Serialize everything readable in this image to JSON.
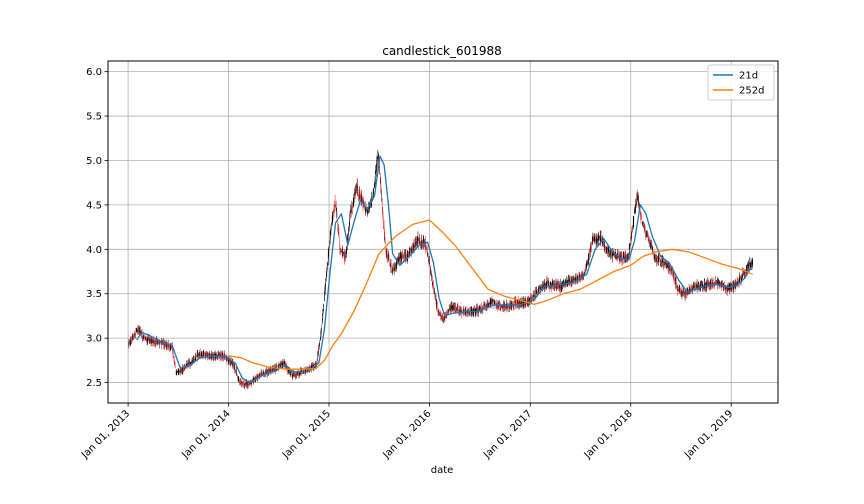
{
  "chart_data": {
    "type": "candlestick",
    "title": "candlestick_601988",
    "xlabel": "date",
    "ylabel": "",
    "x_ticks": [
      "Jan 01, 2013",
      "Jan 01, 2014",
      "Jan 01, 2015",
      "Jan 01, 2016",
      "Jan 01, 2017",
      "Jan 01, 2018",
      "Jan 01, 2019"
    ],
    "y_ticks": [
      "2.5",
      "3.0",
      "3.5",
      "4.0",
      "4.5",
      "5.0",
      "5.5",
      "6.0"
    ],
    "xlim": [
      "2012-10-20",
      "2019-06-20"
    ],
    "ylim": [
      2.27,
      6.12
    ],
    "grid": true,
    "legend_position": "top-right",
    "colors": {
      "up": "#000000",
      "down": "#d62728",
      "ma21": "#1f77b4",
      "ma252": "#ff7f0e"
    },
    "price_path": [
      [
        "2013-01-04",
        2.93
      ],
      [
        "2013-02-05",
        3.1
      ],
      [
        "2013-03-10",
        2.98
      ],
      [
        "2013-05-01",
        2.95
      ],
      [
        "2013-06-10",
        2.9
      ],
      [
        "2013-06-25",
        2.6
      ],
      [
        "2013-08-01",
        2.68
      ],
      [
        "2013-09-15",
        2.82
      ],
      [
        "2013-11-01",
        2.8
      ],
      [
        "2013-12-15",
        2.8
      ],
      [
        "2014-01-20",
        2.7
      ],
      [
        "2014-02-10",
        2.5
      ],
      [
        "2014-03-15",
        2.48
      ],
      [
        "2014-05-01",
        2.6
      ],
      [
        "2014-06-15",
        2.65
      ],
      [
        "2014-07-20",
        2.72
      ],
      [
        "2014-08-20",
        2.58
      ],
      [
        "2014-10-01",
        2.62
      ],
      [
        "2014-11-15",
        2.7
      ],
      [
        "2014-12-01",
        3.0
      ],
      [
        "2014-12-20",
        3.65
      ],
      [
        "2015-01-10",
        4.3
      ],
      [
        "2015-01-25",
        4.55
      ],
      [
        "2015-02-10",
        4.0
      ],
      [
        "2015-03-01",
        3.9
      ],
      [
        "2015-03-20",
        4.4
      ],
      [
        "2015-04-10",
        4.7
      ],
      [
        "2015-05-01",
        4.55
      ],
      [
        "2015-05-20",
        4.4
      ],
      [
        "2015-06-10",
        4.6
      ],
      [
        "2015-06-28",
        5.1
      ],
      [
        "2015-07-10",
        4.6
      ],
      [
        "2015-07-25",
        4.0
      ],
      [
        "2015-08-20",
        3.75
      ],
      [
        "2015-09-15",
        3.9
      ],
      [
        "2015-10-20",
        3.95
      ],
      [
        "2015-11-20",
        4.1
      ],
      [
        "2015-12-20",
        4.05
      ],
      [
        "2016-01-10",
        3.65
      ],
      [
        "2016-02-01",
        3.3
      ],
      [
        "2016-02-20",
        3.2
      ],
      [
        "2016-03-15",
        3.35
      ],
      [
        "2016-05-01",
        3.3
      ],
      [
        "2016-06-15",
        3.3
      ],
      [
        "2016-08-15",
        3.4
      ],
      [
        "2016-10-01",
        3.35
      ],
      [
        "2016-11-15",
        3.4
      ],
      [
        "2016-12-20",
        3.4
      ],
      [
        "2017-01-20",
        3.5
      ],
      [
        "2017-03-01",
        3.62
      ],
      [
        "2017-04-15",
        3.58
      ],
      [
        "2017-06-01",
        3.65
      ],
      [
        "2017-07-15",
        3.7
      ],
      [
        "2017-08-15",
        4.1
      ],
      [
        "2017-09-15",
        4.12
      ],
      [
        "2017-10-15",
        3.95
      ],
      [
        "2017-11-15",
        3.92
      ],
      [
        "2017-12-20",
        3.9
      ],
      [
        "2018-01-10",
        4.3
      ],
      [
        "2018-01-25",
        4.6
      ],
      [
        "2018-02-10",
        4.3
      ],
      [
        "2018-03-01",
        4.15
      ],
      [
        "2018-04-01",
        3.9
      ],
      [
        "2018-05-01",
        3.85
      ],
      [
        "2018-06-01",
        3.75
      ],
      [
        "2018-06-20",
        3.55
      ],
      [
        "2018-07-20",
        3.5
      ],
      [
        "2018-08-20",
        3.58
      ],
      [
        "2018-10-01",
        3.6
      ],
      [
        "2018-11-15",
        3.62
      ],
      [
        "2018-12-20",
        3.55
      ],
      [
        "2019-01-20",
        3.6
      ],
      [
        "2019-02-15",
        3.72
      ],
      [
        "2019-03-01",
        3.8
      ],
      [
        "2019-03-20",
        3.85
      ]
    ],
    "series": [
      {
        "name": "21d",
        "points": [
          [
            "2013-02-01",
            2.98
          ],
          [
            "2013-02-20",
            3.06
          ],
          [
            "2013-03-15",
            3.04
          ],
          [
            "2013-05-01",
            2.95
          ],
          [
            "2013-06-10",
            2.92
          ],
          [
            "2013-07-10",
            2.66
          ],
          [
            "2013-08-15",
            2.7
          ],
          [
            "2013-09-20",
            2.78
          ],
          [
            "2013-11-01",
            2.8
          ],
          [
            "2013-12-20",
            2.79
          ],
          [
            "2014-01-25",
            2.72
          ],
          [
            "2014-02-20",
            2.55
          ],
          [
            "2014-03-20",
            2.5
          ],
          [
            "2014-05-15",
            2.6
          ],
          [
            "2014-06-20",
            2.63
          ],
          [
            "2014-07-25",
            2.7
          ],
          [
            "2014-08-25",
            2.62
          ],
          [
            "2014-10-15",
            2.62
          ],
          [
            "2014-11-25",
            2.72
          ],
          [
            "2014-12-15",
            3.1
          ],
          [
            "2015-01-05",
            3.75
          ],
          [
            "2015-01-25",
            4.3
          ],
          [
            "2015-02-15",
            4.4
          ],
          [
            "2015-03-10",
            4.05
          ],
          [
            "2015-04-01",
            4.3
          ],
          [
            "2015-04-25",
            4.55
          ],
          [
            "2015-05-20",
            4.45
          ],
          [
            "2015-06-15",
            4.6
          ],
          [
            "2015-07-05",
            5.05
          ],
          [
            "2015-07-20",
            4.95
          ],
          [
            "2015-08-05",
            4.5
          ],
          [
            "2015-08-20",
            3.95
          ],
          [
            "2015-09-15",
            3.82
          ],
          [
            "2015-10-20",
            3.92
          ],
          [
            "2015-11-25",
            4.05
          ],
          [
            "2015-12-25",
            4.08
          ],
          [
            "2016-01-15",
            3.85
          ],
          [
            "2016-02-05",
            3.45
          ],
          [
            "2016-02-25",
            3.25
          ],
          [
            "2016-03-25",
            3.28
          ],
          [
            "2016-05-15",
            3.3
          ],
          [
            "2016-06-25",
            3.3
          ],
          [
            "2016-08-25",
            3.38
          ],
          [
            "2016-10-10",
            3.37
          ],
          [
            "2016-12-01",
            3.38
          ],
          [
            "2017-01-15",
            3.43
          ],
          [
            "2017-02-20",
            3.58
          ],
          [
            "2017-04-20",
            3.6
          ],
          [
            "2017-06-10",
            3.63
          ],
          [
            "2017-07-25",
            3.72
          ],
          [
            "2017-08-25",
            4.0
          ],
          [
            "2017-09-25",
            4.12
          ],
          [
            "2017-10-25",
            3.98
          ],
          [
            "2017-11-25",
            3.9
          ],
          [
            "2017-12-25",
            3.88
          ],
          [
            "2018-01-15",
            4.1
          ],
          [
            "2018-02-05",
            4.5
          ],
          [
            "2018-02-25",
            4.4
          ],
          [
            "2018-03-20",
            4.15
          ],
          [
            "2018-04-20",
            3.92
          ],
          [
            "2018-05-20",
            3.85
          ],
          [
            "2018-06-25",
            3.65
          ],
          [
            "2018-07-25",
            3.52
          ],
          [
            "2018-08-25",
            3.55
          ],
          [
            "2018-10-10",
            3.6
          ],
          [
            "2018-11-25",
            3.6
          ],
          [
            "2018-12-25",
            3.57
          ],
          [
            "2019-01-25",
            3.6
          ],
          [
            "2019-02-20",
            3.68
          ],
          [
            "2019-03-20",
            3.82
          ]
        ]
      },
      {
        "name": "252d",
        "points": [
          [
            "2014-01-05",
            2.8
          ],
          [
            "2014-02-15",
            2.78
          ],
          [
            "2014-04-01",
            2.72
          ],
          [
            "2014-06-01",
            2.67
          ],
          [
            "2014-08-01",
            2.65
          ],
          [
            "2014-10-01",
            2.65
          ],
          [
            "2014-11-15",
            2.66
          ],
          [
            "2014-12-15",
            2.75
          ],
          [
            "2015-01-15",
            2.92
          ],
          [
            "2015-02-15",
            3.05
          ],
          [
            "2015-04-01",
            3.3
          ],
          [
            "2015-05-15",
            3.6
          ],
          [
            "2015-07-01",
            3.95
          ],
          [
            "2015-09-01",
            4.15
          ],
          [
            "2015-11-01",
            4.28
          ],
          [
            "2016-01-01",
            4.33
          ],
          [
            "2016-02-15",
            4.2
          ],
          [
            "2016-04-01",
            4.05
          ],
          [
            "2016-06-01",
            3.8
          ],
          [
            "2016-08-01",
            3.55
          ],
          [
            "2016-10-01",
            3.47
          ],
          [
            "2016-12-01",
            3.42
          ],
          [
            "2017-01-15",
            3.38
          ],
          [
            "2017-03-01",
            3.42
          ],
          [
            "2017-05-01",
            3.5
          ],
          [
            "2017-07-01",
            3.55
          ],
          [
            "2017-09-01",
            3.65
          ],
          [
            "2017-11-01",
            3.75
          ],
          [
            "2018-01-01",
            3.82
          ],
          [
            "2018-02-15",
            3.92
          ],
          [
            "2018-04-01",
            3.97
          ],
          [
            "2018-06-01",
            4.0
          ],
          [
            "2018-08-01",
            3.97
          ],
          [
            "2018-10-01",
            3.9
          ],
          [
            "2018-12-01",
            3.83
          ],
          [
            "2019-02-01",
            3.78
          ],
          [
            "2019-03-20",
            3.72
          ]
        ]
      }
    ]
  }
}
